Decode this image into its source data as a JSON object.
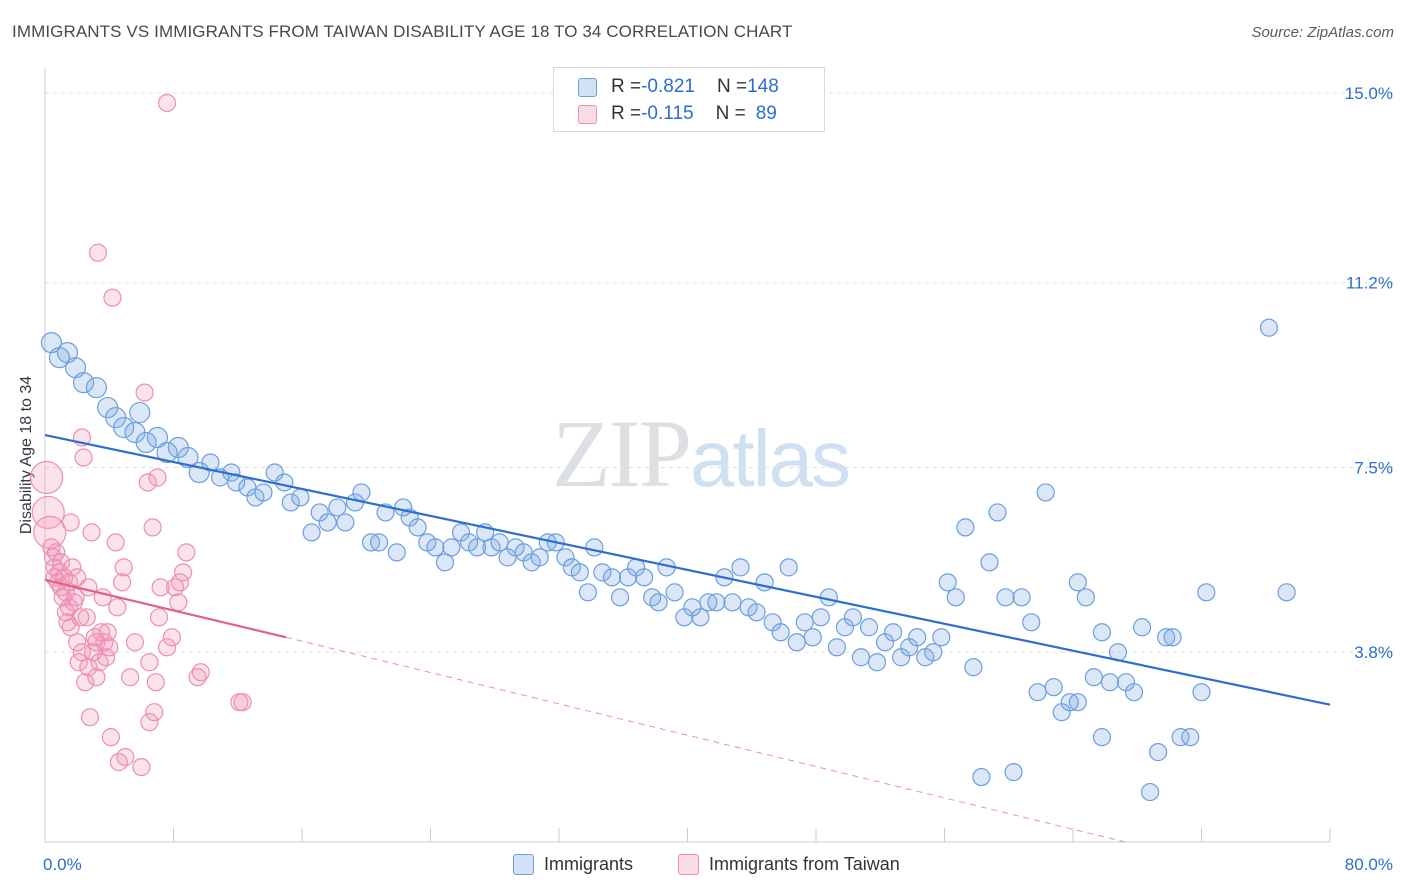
{
  "header": {
    "title": "IMMIGRANTS VS IMMIGRANTS FROM TAIWAN DISABILITY AGE 18 TO 34 CORRELATION CHART",
    "source": "Source: ZipAtlas.com"
  },
  "watermark": {
    "part1": "ZIP",
    "part2": "atlas"
  },
  "legend": {
    "rows": [
      {
        "r_label": "R = ",
        "r_value": "-0.821",
        "n_label": "N = ",
        "n_value": "148"
      },
      {
        "r_label": "R = ",
        "r_value": "-0.115",
        "n_label": "N = ",
        "n_value": "89"
      }
    ]
  },
  "bottom_legend": {
    "series1": "Immigrants",
    "series2": "Immigrants from Taiwan"
  },
  "colors": {
    "blue": "#6a9fe0",
    "blue_fill": "rgba(126,170,226,0.28)",
    "blue_line": "#2d6fd0",
    "pink": "#ec8fb0",
    "pink_fill": "rgba(240,150,185,0.28)",
    "pink_line": "#e0608c",
    "grid": "#dde0e5",
    "label": "#2a6fcf"
  },
  "chart_data": {
    "type": "scatter",
    "title": "IMMIGRANTS VS IMMIGRANTS FROM TAIWAN DISABILITY AGE 18 TO 34 CORRELATION CHART",
    "xlabel": "",
    "ylabel": "Disability Age 18 to 34",
    "xlim": [
      0,
      80
    ],
    "ylim": [
      0,
      15.3
    ],
    "x_tick_labels": [
      "0.0%",
      "80.0%"
    ],
    "y_ticks": [
      3.8,
      7.5,
      11.2,
      15.0
    ],
    "y_tick_labels": [
      "3.8%",
      "7.5%",
      "11.2%",
      "15.0%"
    ],
    "grid": true,
    "legend_position": "top-center",
    "series": [
      {
        "name": "Immigrants",
        "R": -0.821,
        "N": 148,
        "trend": {
          "x": [
            0,
            80
          ],
          "y": [
            8.15,
            2.75
          ]
        },
        "points": [
          [
            0.4,
            10.0
          ],
          [
            0.9,
            9.7
          ],
          [
            1.4,
            9.8
          ],
          [
            1.9,
            9.5
          ],
          [
            2.4,
            9.2
          ],
          [
            3.2,
            9.1
          ],
          [
            3.9,
            8.7
          ],
          [
            4.4,
            8.5
          ],
          [
            4.9,
            8.3
          ],
          [
            5.6,
            8.2
          ],
          [
            5.9,
            8.6
          ],
          [
            6.3,
            8.0
          ],
          [
            7.0,
            8.1
          ],
          [
            7.6,
            7.8
          ],
          [
            8.3,
            7.9
          ],
          [
            8.9,
            7.7
          ],
          [
            9.6,
            7.4
          ],
          [
            10.3,
            7.6
          ],
          [
            10.9,
            7.3
          ],
          [
            11.6,
            7.4
          ],
          [
            11.9,
            7.2
          ],
          [
            12.6,
            7.1
          ],
          [
            13.1,
            6.9
          ],
          [
            13.6,
            7.0
          ],
          [
            14.3,
            7.4
          ],
          [
            14.9,
            7.2
          ],
          [
            15.3,
            6.8
          ],
          [
            15.9,
            6.9
          ],
          [
            16.6,
            6.2
          ],
          [
            17.1,
            6.6
          ],
          [
            17.6,
            6.4
          ],
          [
            18.2,
            6.7
          ],
          [
            18.7,
            6.4
          ],
          [
            19.3,
            6.8
          ],
          [
            19.7,
            7.0
          ],
          [
            20.3,
            6.0
          ],
          [
            20.8,
            6.0
          ],
          [
            21.2,
            6.6
          ],
          [
            21.9,
            5.8
          ],
          [
            22.3,
            6.7
          ],
          [
            22.7,
            6.5
          ],
          [
            23.2,
            6.3
          ],
          [
            23.8,
            6.0
          ],
          [
            24.3,
            5.9
          ],
          [
            24.9,
            5.6
          ],
          [
            25.3,
            5.9
          ],
          [
            25.9,
            6.2
          ],
          [
            26.4,
            6.0
          ],
          [
            26.9,
            5.9
          ],
          [
            27.4,
            6.2
          ],
          [
            27.8,
            5.9
          ],
          [
            28.3,
            6.0
          ],
          [
            28.8,
            5.7
          ],
          [
            29.3,
            5.9
          ],
          [
            29.8,
            5.8
          ],
          [
            30.3,
            5.6
          ],
          [
            30.8,
            5.7
          ],
          [
            31.3,
            6.0
          ],
          [
            31.8,
            6.0
          ],
          [
            32.4,
            5.7
          ],
          [
            32.8,
            5.5
          ],
          [
            33.3,
            5.4
          ],
          [
            33.8,
            5.0
          ],
          [
            34.2,
            5.9
          ],
          [
            34.7,
            5.4
          ],
          [
            35.3,
            5.3
          ],
          [
            35.8,
            4.9
          ],
          [
            36.3,
            5.3
          ],
          [
            36.8,
            5.5
          ],
          [
            37.3,
            5.3
          ],
          [
            37.8,
            4.9
          ],
          [
            38.2,
            4.8
          ],
          [
            38.7,
            5.5
          ],
          [
            39.2,
            5.0
          ],
          [
            39.8,
            4.5
          ],
          [
            40.3,
            4.7
          ],
          [
            40.8,
            4.5
          ],
          [
            41.3,
            4.8
          ],
          [
            41.8,
            4.8
          ],
          [
            42.3,
            5.3
          ],
          [
            42.8,
            4.8
          ],
          [
            43.3,
            5.5
          ],
          [
            43.8,
            4.7
          ],
          [
            44.3,
            4.6
          ],
          [
            44.8,
            5.2
          ],
          [
            45.3,
            4.4
          ],
          [
            45.8,
            4.2
          ],
          [
            46.3,
            5.5
          ],
          [
            46.8,
            4.0
          ],
          [
            47.3,
            4.4
          ],
          [
            47.8,
            4.1
          ],
          [
            48.3,
            4.5
          ],
          [
            48.8,
            4.9
          ],
          [
            49.3,
            3.9
          ],
          [
            49.8,
            4.3
          ],
          [
            50.3,
            4.5
          ],
          [
            50.8,
            3.7
          ],
          [
            51.3,
            4.3
          ],
          [
            51.8,
            3.6
          ],
          [
            52.3,
            4.0
          ],
          [
            52.8,
            4.2
          ],
          [
            53.3,
            3.7
          ],
          [
            53.8,
            3.9
          ],
          [
            54.3,
            4.1
          ],
          [
            54.8,
            3.7
          ],
          [
            55.3,
            3.8
          ],
          [
            55.8,
            4.1
          ],
          [
            56.2,
            5.2
          ],
          [
            56.7,
            4.9
          ],
          [
            57.3,
            6.3
          ],
          [
            57.8,
            3.5
          ],
          [
            58.3,
            1.3
          ],
          [
            58.8,
            5.6
          ],
          [
            59.3,
            6.6
          ],
          [
            59.8,
            4.9
          ],
          [
            60.3,
            1.4
          ],
          [
            60.8,
            4.9
          ],
          [
            61.4,
            4.4
          ],
          [
            61.8,
            3.0
          ],
          [
            62.3,
            7.0
          ],
          [
            62.8,
            3.1
          ],
          [
            63.3,
            2.6
          ],
          [
            63.8,
            2.8
          ],
          [
            64.3,
            2.8
          ],
          [
            64.8,
            4.9
          ],
          [
            65.3,
            3.3
          ],
          [
            65.8,
            2.1
          ],
          [
            66.3,
            3.2
          ],
          [
            66.8,
            3.8
          ],
          [
            67.3,
            3.2
          ],
          [
            67.8,
            3.0
          ],
          [
            68.3,
            4.3
          ],
          [
            68.8,
            1.0
          ],
          [
            69.3,
            1.8
          ],
          [
            69.8,
            4.1
          ],
          [
            70.2,
            4.1
          ],
          [
            70.7,
            2.1
          ],
          [
            71.3,
            2.1
          ],
          [
            72.3,
            5.0
          ],
          [
            76.2,
            10.3
          ],
          [
            77.3,
            5.0
          ],
          [
            64.3,
            5.2
          ],
          [
            65.8,
            4.2
          ],
          [
            72.0,
            3.0
          ]
        ]
      },
      {
        "name": "Immigrants from Taiwan",
        "R": -0.115,
        "N": 89,
        "trend": {
          "solid": {
            "x": [
              0,
              15
            ],
            "y": [
              5.25,
              4.1
            ]
          },
          "dashed": {
            "x": [
              15,
              80
            ],
            "y": [
              4.1,
              -1.0
            ]
          }
        },
        "points": [
          [
            0.1,
            7.3
          ],
          [
            0.2,
            6.6
          ],
          [
            0.3,
            6.2
          ],
          [
            0.4,
            5.9
          ],
          [
            0.5,
            5.7
          ],
          [
            0.6,
            5.5
          ],
          [
            0.6,
            5.3
          ],
          [
            0.7,
            5.8
          ],
          [
            0.8,
            5.2
          ],
          [
            0.9,
            5.4
          ],
          [
            1.0,
            5.1
          ],
          [
            1.0,
            5.6
          ],
          [
            1.1,
            4.9
          ],
          [
            1.2,
            5.3
          ],
          [
            1.3,
            4.6
          ],
          [
            1.3,
            5.0
          ],
          [
            1.4,
            4.4
          ],
          [
            1.5,
            5.2
          ],
          [
            1.5,
            4.7
          ],
          [
            1.6,
            6.4
          ],
          [
            1.6,
            4.3
          ],
          [
            1.7,
            5.5
          ],
          [
            1.8,
            4.8
          ],
          [
            1.9,
            4.9
          ],
          [
            2.0,
            4.0
          ],
          [
            2.0,
            5.3
          ],
          [
            2.1,
            3.6
          ],
          [
            2.2,
            4.5
          ],
          [
            2.3,
            3.8
          ],
          [
            2.3,
            8.1
          ],
          [
            2.4,
            7.7
          ],
          [
            2.5,
            3.2
          ],
          [
            2.6,
            4.5
          ],
          [
            2.7,
            5.1
          ],
          [
            2.7,
            3.5
          ],
          [
            2.8,
            2.5
          ],
          [
            2.9,
            6.2
          ],
          [
            3.0,
            3.8
          ],
          [
            3.1,
            4.1
          ],
          [
            3.2,
            4.0
          ],
          [
            3.2,
            3.3
          ],
          [
            3.3,
            11.8
          ],
          [
            3.4,
            3.6
          ],
          [
            3.5,
            4.2
          ],
          [
            3.6,
            4.9
          ],
          [
            3.7,
            4.0
          ],
          [
            3.8,
            3.7
          ],
          [
            3.9,
            4.2
          ],
          [
            4.0,
            3.9
          ],
          [
            4.1,
            2.1
          ],
          [
            4.2,
            10.9
          ],
          [
            4.4,
            6.0
          ],
          [
            4.5,
            4.7
          ],
          [
            4.6,
            1.6
          ],
          [
            4.8,
            5.2
          ],
          [
            4.9,
            5.5
          ],
          [
            5.0,
            1.7
          ],
          [
            5.3,
            3.3
          ],
          [
            5.6,
            4.0
          ],
          [
            6.0,
            1.5
          ],
          [
            6.2,
            9.0
          ],
          [
            6.4,
            7.2
          ],
          [
            6.5,
            3.6
          ],
          [
            6.5,
            2.4
          ],
          [
            6.7,
            6.3
          ],
          [
            6.8,
            2.6
          ],
          [
            6.9,
            3.2
          ],
          [
            7.0,
            7.3
          ],
          [
            7.1,
            4.5
          ],
          [
            7.2,
            5.1
          ],
          [
            7.6,
            14.8
          ],
          [
            7.6,
            3.9
          ],
          [
            7.9,
            4.1
          ],
          [
            8.1,
            5.1
          ],
          [
            8.3,
            4.8
          ],
          [
            8.4,
            5.2
          ],
          [
            8.6,
            5.4
          ],
          [
            8.8,
            5.8
          ],
          [
            9.5,
            3.3
          ],
          [
            9.7,
            3.4
          ],
          [
            12.1,
            2.8
          ],
          [
            12.3,
            2.8
          ]
        ]
      }
    ]
  }
}
